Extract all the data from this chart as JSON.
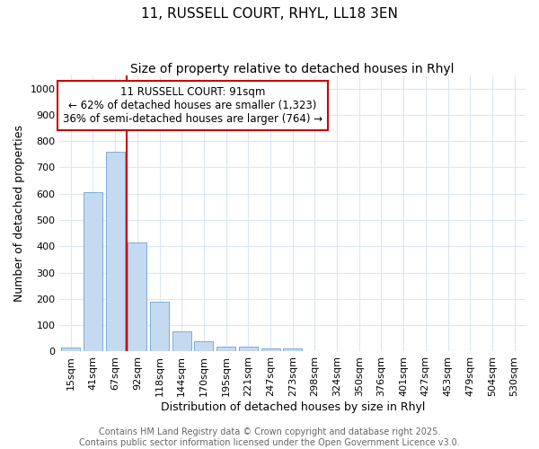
{
  "title": "11, RUSSELL COURT, RHYL, LL18 3EN",
  "subtitle": "Size of property relative to detached houses in Rhyl",
  "xlabel": "Distribution of detached houses by size in Rhyl",
  "ylabel": "Number of detached properties",
  "categories": [
    "15sqm",
    "41sqm",
    "67sqm",
    "92sqm",
    "118sqm",
    "144sqm",
    "170sqm",
    "195sqm",
    "221sqm",
    "247sqm",
    "273sqm",
    "298sqm",
    "324sqm",
    "350sqm",
    "376sqm",
    "401sqm",
    "427sqm",
    "453sqm",
    "479sqm",
    "504sqm",
    "530sqm"
  ],
  "values": [
    15,
    605,
    760,
    415,
    190,
    75,
    38,
    18,
    18,
    11,
    11,
    0,
    0,
    0,
    0,
    0,
    0,
    0,
    0,
    0,
    0
  ],
  "bar_color": "#c5d9f0",
  "bar_edge_color": "#7aaed6",
  "background_color": "#ffffff",
  "grid_color": "#dce6f5",
  "vline_color": "#cc0000",
  "vline_x": 2.5,
  "annotation_text": "11 RUSSELL COURT: 91sqm\n← 62% of detached houses are smaller (1,323)\n36% of semi-detached houses are larger (764) →",
  "ylim": [
    0,
    1050
  ],
  "yticks": [
    0,
    100,
    200,
    300,
    400,
    500,
    600,
    700,
    800,
    900,
    1000
  ],
  "title_fontsize": 11,
  "subtitle_fontsize": 10,
  "axis_label_fontsize": 9,
  "tick_fontsize": 8,
  "annotation_fontsize": 8.5,
  "footer_fontsize": 7,
  "footer_line1": "Contains HM Land Registry data © Crown copyright and database right 2025.",
  "footer_line2": "Contains public sector information licensed under the Open Government Licence v3.0."
}
